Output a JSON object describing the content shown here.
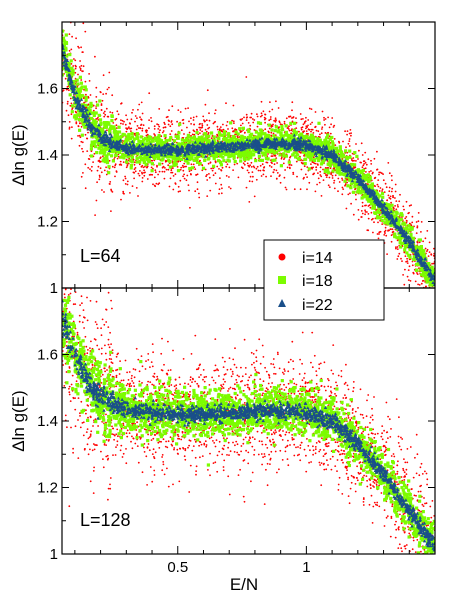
{
  "chart_data": [
    {
      "type": "scatter",
      "panel_label": "L=64",
      "ylabel": "Δln g(E)",
      "xlabel": "",
      "xlim": [
        0.05,
        1.5
      ],
      "ylim": [
        1.0,
        1.8
      ],
      "x_ticks": [
        0.5,
        1
      ],
      "y_ticks": [
        1,
        1.2,
        1.4,
        1.6
      ],
      "y_tick_labels": [
        "1",
        "1.2",
        "1.4",
        "1.6"
      ],
      "legend": {
        "position": "bottom-right"
      },
      "series": [
        {
          "name": "i=14",
          "color": "#ff0000",
          "marker": "circle",
          "spread": 0.055,
          "x": [
            0.05,
            0.1,
            0.15,
            0.2,
            0.3,
            0.4,
            0.5,
            0.6,
            0.7,
            0.8,
            0.9,
            1.0,
            1.1,
            1.2,
            1.3,
            1.4,
            1.5
          ],
          "y": [
            1.72,
            1.58,
            1.5,
            1.45,
            1.42,
            1.415,
            1.415,
            1.42,
            1.425,
            1.43,
            1.435,
            1.43,
            1.4,
            1.33,
            1.24,
            1.14,
            1.02
          ]
        },
        {
          "name": "i=18",
          "color": "#7cfc00",
          "marker": "square",
          "spread": 0.022,
          "x": [
            0.05,
            0.1,
            0.15,
            0.2,
            0.3,
            0.4,
            0.5,
            0.6,
            0.7,
            0.8,
            0.9,
            1.0,
            1.1,
            1.2,
            1.3,
            1.4,
            1.5
          ],
          "y": [
            1.72,
            1.58,
            1.5,
            1.45,
            1.42,
            1.415,
            1.415,
            1.42,
            1.425,
            1.43,
            1.435,
            1.43,
            1.4,
            1.33,
            1.24,
            1.14,
            1.02
          ]
        },
        {
          "name": "i=22",
          "color": "#1a4f8a",
          "marker": "triangle",
          "spread": 0.008,
          "x": [
            0.05,
            0.1,
            0.15,
            0.2,
            0.3,
            0.4,
            0.5,
            0.6,
            0.7,
            0.8,
            0.9,
            1.0,
            1.1,
            1.2,
            1.3,
            1.4,
            1.5
          ],
          "y": [
            1.72,
            1.58,
            1.5,
            1.45,
            1.42,
            1.415,
            1.415,
            1.42,
            1.425,
            1.43,
            1.435,
            1.43,
            1.4,
            1.33,
            1.24,
            1.14,
            1.02
          ]
        }
      ]
    },
    {
      "type": "scatter",
      "panel_label": "L=128",
      "ylabel": "Δln g(E)",
      "xlabel": "E/N",
      "xlim": [
        0.05,
        1.5
      ],
      "ylim": [
        1.0,
        1.8
      ],
      "x_ticks": [
        0.5,
        1
      ],
      "x_tick_labels": [
        "0.5",
        "1"
      ],
      "y_ticks": [
        1,
        1.2,
        1.4,
        1.6
      ],
      "y_tick_labels": [
        "1",
        "1.2",
        "1.4",
        "1.6"
      ],
      "series": [
        {
          "name": "i=14",
          "color": "#ff0000",
          "marker": "circle",
          "spread": 0.085,
          "x": [
            0.05,
            0.1,
            0.15,
            0.2,
            0.3,
            0.4,
            0.5,
            0.6,
            0.7,
            0.8,
            0.9,
            1.0,
            1.1,
            1.2,
            1.3,
            1.4,
            1.5
          ],
          "y": [
            1.7,
            1.6,
            1.52,
            1.47,
            1.435,
            1.425,
            1.42,
            1.42,
            1.425,
            1.43,
            1.43,
            1.425,
            1.4,
            1.33,
            1.24,
            1.13,
            1.02
          ]
        },
        {
          "name": "i=18",
          "color": "#7cfc00",
          "marker": "square",
          "spread": 0.035,
          "x": [
            0.05,
            0.1,
            0.15,
            0.2,
            0.3,
            0.4,
            0.5,
            0.6,
            0.7,
            0.8,
            0.9,
            1.0,
            1.1,
            1.2,
            1.3,
            1.4,
            1.5
          ],
          "y": [
            1.7,
            1.6,
            1.52,
            1.47,
            1.435,
            1.425,
            1.42,
            1.42,
            1.425,
            1.43,
            1.43,
            1.425,
            1.4,
            1.33,
            1.24,
            1.13,
            1.02
          ]
        },
        {
          "name": "i=22",
          "color": "#1a4f8a",
          "marker": "triangle",
          "spread": 0.012,
          "x": [
            0.05,
            0.1,
            0.15,
            0.2,
            0.3,
            0.4,
            0.5,
            0.6,
            0.7,
            0.8,
            0.9,
            1.0,
            1.1,
            1.2,
            1.3,
            1.4,
            1.5
          ],
          "y": [
            1.7,
            1.6,
            1.52,
            1.47,
            1.435,
            1.425,
            1.42,
            1.42,
            1.425,
            1.43,
            1.43,
            1.425,
            1.4,
            1.33,
            1.24,
            1.13,
            1.02
          ]
        }
      ]
    }
  ]
}
